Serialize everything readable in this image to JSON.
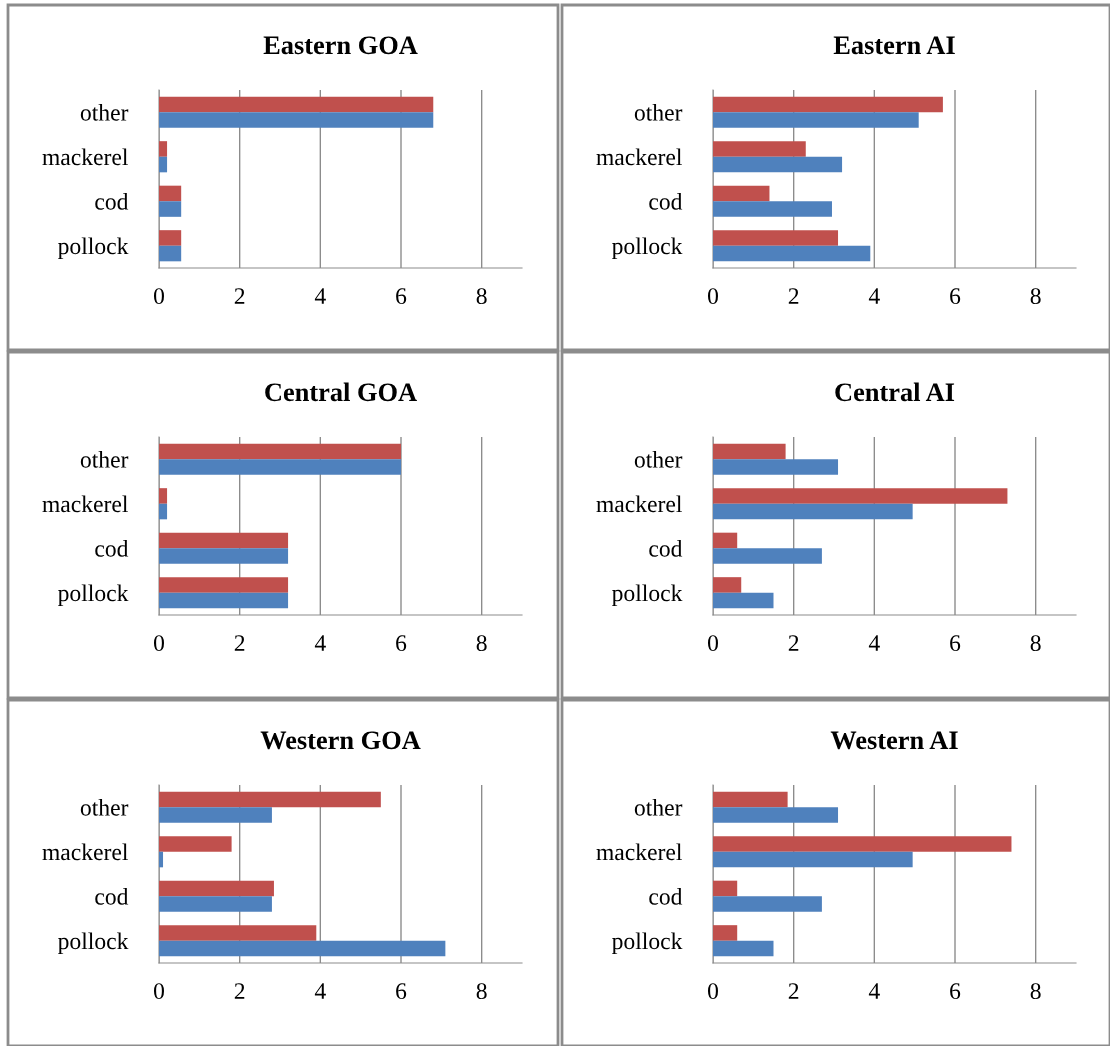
{
  "chart_data": [
    {
      "type": "bar",
      "orientation": "horizontal",
      "title": "Eastern GOA",
      "categories": [
        "other",
        "mackerel",
        "cod",
        "pollock"
      ],
      "xlim": [
        0,
        9
      ],
      "xticks": [
        0,
        2,
        4,
        6,
        8
      ],
      "grid": "x",
      "series": [
        {
          "color": "#c0504d",
          "values": [
            6.8,
            0.2,
            0.55,
            0.55
          ]
        },
        {
          "color": "#4f81bd",
          "values": [
            6.8,
            0.2,
            0.55,
            0.55
          ]
        }
      ]
    },
    {
      "type": "bar",
      "orientation": "horizontal",
      "title": "Eastern AI",
      "categories": [
        "other",
        "mackerel",
        "cod",
        "pollock"
      ],
      "xlim": [
        0,
        9
      ],
      "xticks": [
        0,
        2,
        4,
        6,
        8
      ],
      "grid": "x",
      "series": [
        {
          "color": "#c0504d",
          "values": [
            5.7,
            2.3,
            1.4,
            3.1
          ]
        },
        {
          "color": "#4f81bd",
          "values": [
            5.1,
            3.2,
            2.95,
            3.9
          ]
        }
      ]
    },
    {
      "type": "bar",
      "orientation": "horizontal",
      "title": "Central GOA",
      "categories": [
        "other",
        "mackerel",
        "cod",
        "pollock"
      ],
      "xlim": [
        0,
        9
      ],
      "xticks": [
        0,
        2,
        4,
        6,
        8
      ],
      "grid": "x",
      "series": [
        {
          "color": "#c0504d",
          "values": [
            6.0,
            0.2,
            3.2,
            3.2
          ]
        },
        {
          "color": "#4f81bd",
          "values": [
            6.0,
            0.2,
            3.2,
            3.2
          ]
        }
      ]
    },
    {
      "type": "bar",
      "orientation": "horizontal",
      "title": "Central AI",
      "categories": [
        "other",
        "mackerel",
        "cod",
        "pollock"
      ],
      "xlim": [
        0,
        9
      ],
      "xticks": [
        0,
        2,
        4,
        6,
        8
      ],
      "grid": "x",
      "series": [
        {
          "color": "#c0504d",
          "values": [
            1.8,
            7.3,
            0.6,
            0.7
          ]
        },
        {
          "color": "#4f81bd",
          "values": [
            3.1,
            4.95,
            2.7,
            1.5
          ]
        }
      ]
    },
    {
      "type": "bar",
      "orientation": "horizontal",
      "title": "Western GOA",
      "categories": [
        "other",
        "mackerel",
        "cod",
        "pollock"
      ],
      "xlim": [
        0,
        9
      ],
      "xticks": [
        0,
        2,
        4,
        6,
        8
      ],
      "grid": "x",
      "series": [
        {
          "color": "#c0504d",
          "values": [
            5.5,
            1.8,
            2.85,
            3.9
          ]
        },
        {
          "color": "#4f81bd",
          "values": [
            2.8,
            0.1,
            2.8,
            7.1
          ]
        }
      ]
    },
    {
      "type": "bar",
      "orientation": "horizontal",
      "title": "Western AI",
      "categories": [
        "other",
        "mackerel",
        "cod",
        "pollock"
      ],
      "xlim": [
        0,
        9
      ],
      "xticks": [
        0,
        2,
        4,
        6,
        8
      ],
      "grid": "x",
      "series": [
        {
          "color": "#c0504d",
          "values": [
            1.85,
            7.4,
            0.6,
            0.6
          ]
        },
        {
          "color": "#4f81bd",
          "values": [
            3.1,
            4.95,
            2.7,
            1.5
          ]
        }
      ]
    }
  ]
}
